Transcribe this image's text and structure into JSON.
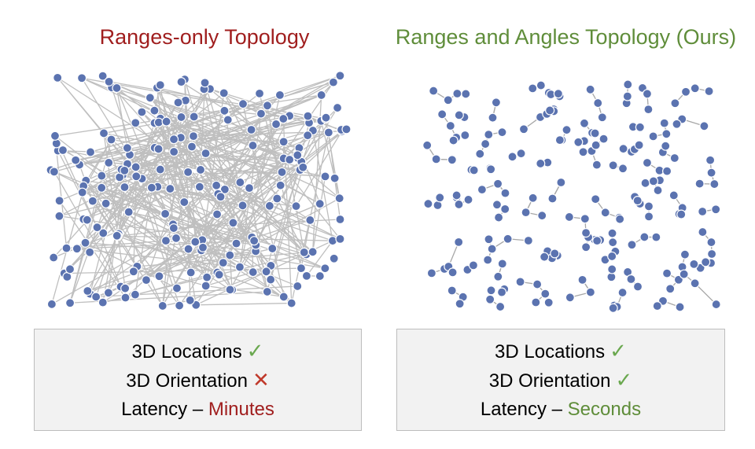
{
  "left": {
    "title": "Ranges-only Topology",
    "title_color": "#a01e1e",
    "status": {
      "locations": "3D Locations",
      "locations_mark": "✓",
      "orientation": "3D Orientation",
      "orientation_mark": "✕",
      "latency_label": "Latency –",
      "latency_value": "Minutes"
    }
  },
  "right": {
    "title": "Ranges and Angles Topology (Ours)",
    "title_color": "#5f8d3a",
    "status": {
      "locations": "3D Locations",
      "locations_mark": "✓",
      "orientation": "3D Orientation",
      "orientation_mark": "✓",
      "latency_label": "Latency –",
      "latency_value": "Seconds"
    }
  },
  "colors": {
    "node": "#5b73b0",
    "check": "#6aa84f",
    "cross": "#c0392b",
    "minutes": "#a01e1e",
    "seconds": "#5f8d3a"
  }
}
